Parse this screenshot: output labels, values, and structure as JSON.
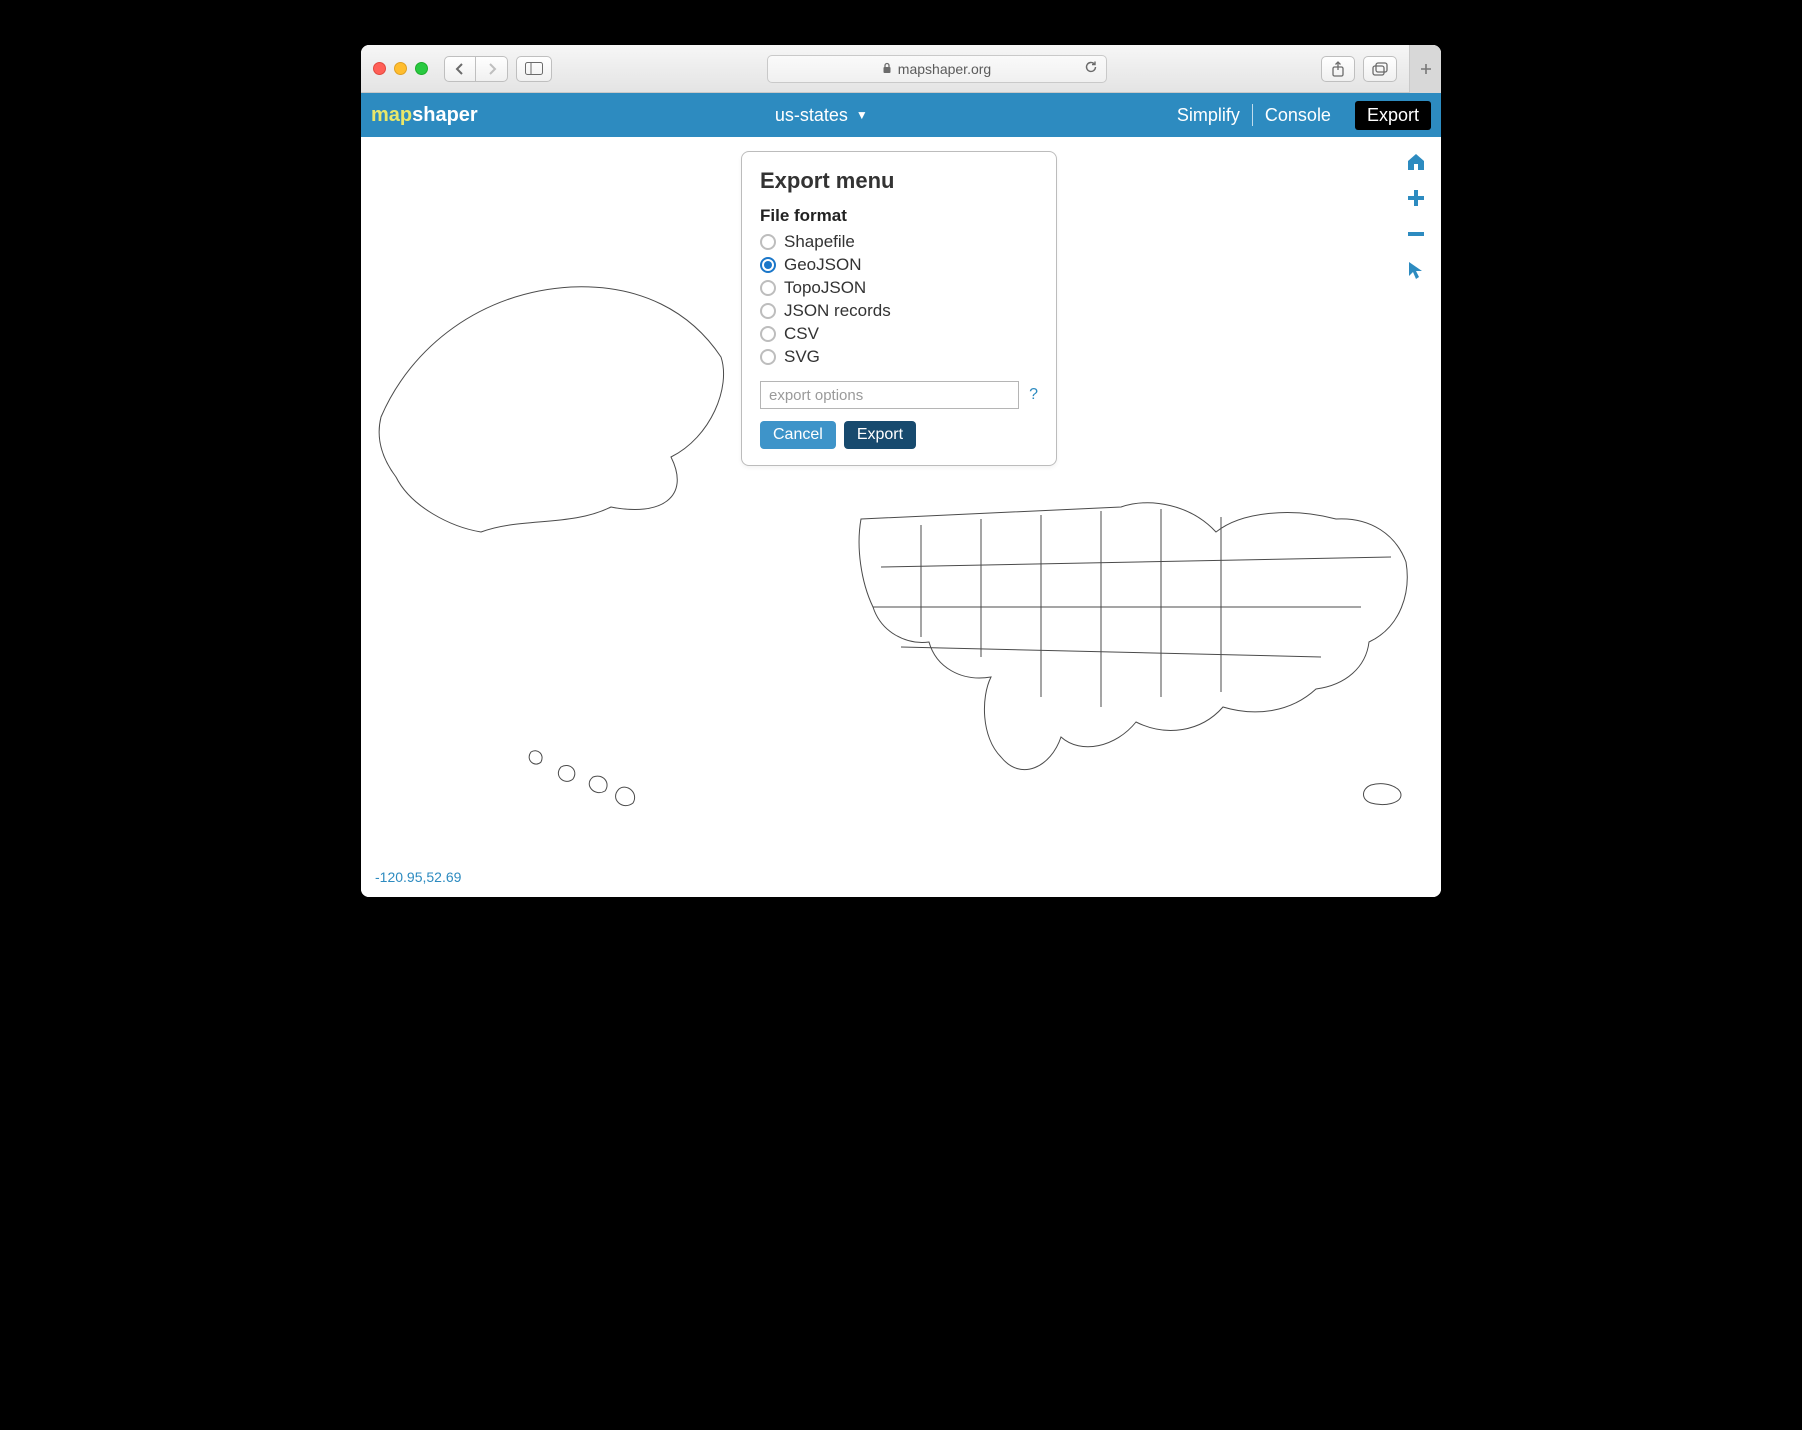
{
  "browser": {
    "url_host": "mapshaper.org"
  },
  "header": {
    "logo_map": "map",
    "logo_shaper": "shaper",
    "layer_name": "us-states",
    "simplify": "Simplify",
    "console": "Console",
    "export": "Export"
  },
  "dialog": {
    "title": "Export menu",
    "format_label": "File format",
    "options": [
      {
        "label": "Shapefile",
        "checked": false
      },
      {
        "label": "GeoJSON",
        "checked": true
      },
      {
        "label": "TopoJSON",
        "checked": false
      },
      {
        "label": "JSON records",
        "checked": false
      },
      {
        "label": "CSV",
        "checked": false
      },
      {
        "label": "SVG",
        "checked": false
      }
    ],
    "options_placeholder": "export options",
    "help": "?",
    "cancel": "Cancel",
    "export": "Export"
  },
  "coords": "-120.95,52.69",
  "colors": {
    "header_bg": "#2d8bc0",
    "accent": "#2d8bc0",
    "logo_yellow": "#e9e76a",
    "btn_cancel": "#3e94c9",
    "btn_export": "#174a6e",
    "map_stroke": "#4b4b4b"
  }
}
